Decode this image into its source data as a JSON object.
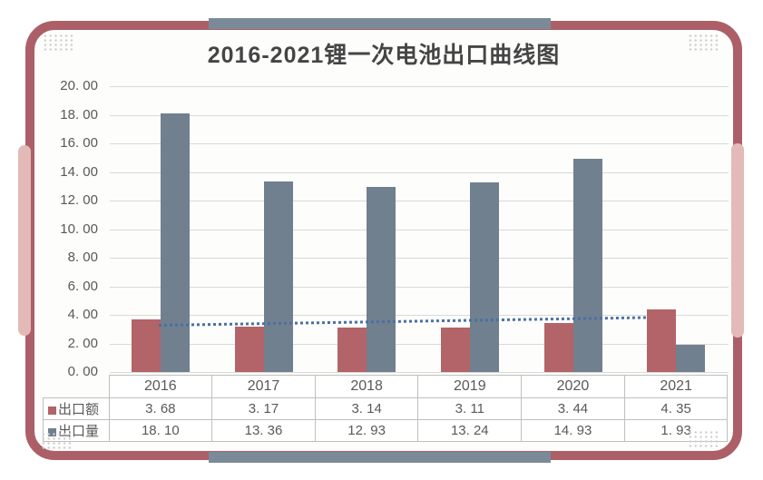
{
  "title": "2016-2021锂一次电池出口曲线图",
  "chart_data": {
    "type": "bar",
    "title": "2016-2021锂一次电池出口曲线图",
    "categories": [
      "2016",
      "2017",
      "2018",
      "2019",
      "2020",
      "2021"
    ],
    "series": [
      {
        "name": "出口额",
        "color": "#b26468",
        "values": [
          3.68,
          3.17,
          3.14,
          3.11,
          3.44,
          4.35
        ],
        "display": [
          "3. 68",
          "3. 17",
          "3. 14",
          "3. 11",
          "3. 44",
          "4. 35"
        ]
      },
      {
        "name": "出口量",
        "color": "#71808f",
        "values": [
          18.1,
          13.36,
          12.93,
          13.24,
          14.93,
          1.93
        ],
        "display": [
          "18. 10",
          "13. 36",
          "12. 93",
          "13. 24",
          "14. 93",
          "1. 93"
        ]
      }
    ],
    "trendline": {
      "of_series": "出口额",
      "style": "dotted",
      "color": "#4a6fa5",
      "start_value": 3.22,
      "end_value": 3.76
    },
    "ylim": [
      0,
      20
    ],
    "ytick_step": 2,
    "ytick_labels": [
      "20. 00",
      "18. 00",
      "16. 00",
      "14. 00",
      "12. 00",
      "10. 00",
      "8. 00",
      "6. 00",
      "4. 00",
      "2. 00",
      "0. 00"
    ],
    "grid": true,
    "legend_position": "data-table-left"
  },
  "colors": {
    "border_maroon": "#ac5f67",
    "accent_pink": "#e3bab7",
    "accent_slate": "#7b8a99",
    "grid_line": "#d9d9d9",
    "axis_text": "#595959",
    "title_text": "#454545",
    "table_border": "#bfbfbf",
    "corner_dots": "#cfcfcf",
    "card_bg": "#fdfdfc"
  }
}
